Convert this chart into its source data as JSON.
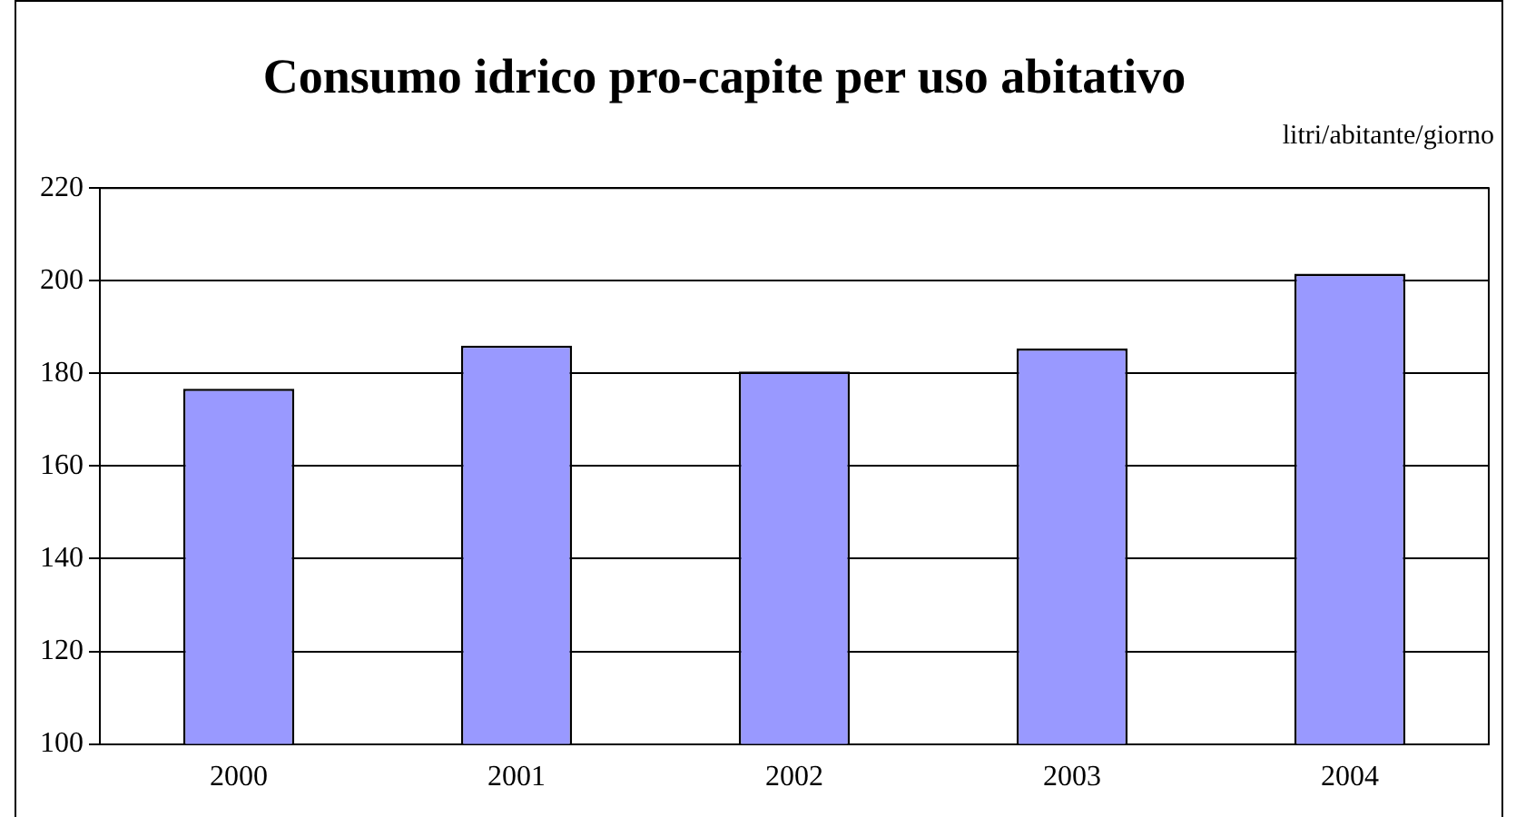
{
  "chart_data": {
    "type": "bar",
    "title": "Consumo idrico pro-capite per uso abitativo",
    "ylabel": "litri/abitante/giorno",
    "categories": [
      "2000",
      "2001",
      "2002",
      "2003",
      "2004"
    ],
    "values": [
      176.7,
      186,
      180.4,
      185.4,
      201.5
    ],
    "color": "#9999ff",
    "ylim": [
      100,
      220
    ],
    "yticks": [
      100,
      120,
      140,
      160,
      180,
      200,
      220
    ],
    "grid": "y",
    "legend": false
  }
}
